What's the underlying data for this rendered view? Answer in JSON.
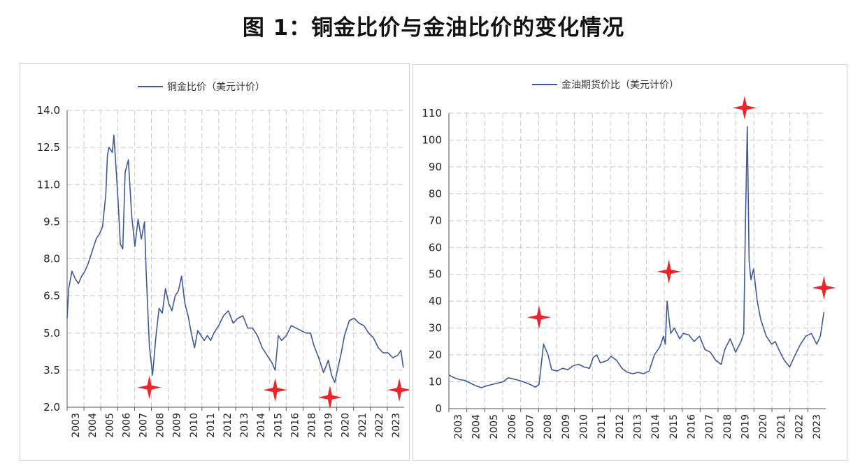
{
  "page_title": "图 1：铜金比价与金油比价的变化情况",
  "colors": {
    "series": "#3f5a98",
    "marker": "#e8262b",
    "grid": "#c8c8c8",
    "axis": "#555555"
  },
  "chart_data": [
    {
      "type": "line",
      "legend_position": "top-center",
      "grid": true,
      "ylim": [
        2.0,
        14.0
      ],
      "yticks": [
        "14.0",
        "12.5",
        "11.0",
        "9.5",
        "8.0",
        "6.5",
        "5.0",
        "3.5",
        "2.0"
      ],
      "xlim": [
        2003,
        2023.9
      ],
      "xticks": [
        "2003",
        "2004",
        "2005",
        "2006",
        "2007",
        "2008",
        "2009",
        "2010",
        "2011",
        "2012",
        "2013",
        "2014",
        "2015",
        "2016",
        "2018",
        "2019",
        "2020",
        "2021",
        "2022",
        "2023"
      ],
      "series": [
        {
          "name": "铜金比价（美元计价）",
          "x": [
            2003.0,
            2003.1,
            2003.3,
            2003.5,
            2003.7,
            2003.9,
            2004.1,
            2004.3,
            2004.5,
            2004.8,
            2005.0,
            2005.2,
            2005.4,
            2005.5,
            2005.6,
            2005.8,
            2005.9,
            2006.0,
            2006.15,
            2006.3,
            2006.45,
            2006.6,
            2006.8,
            2007.0,
            2007.2,
            2007.4,
            2007.6,
            2007.8,
            2007.9,
            2008.1,
            2008.3,
            2008.5,
            2008.7,
            2008.9,
            2009.1,
            2009.3,
            2009.5,
            2009.7,
            2009.9,
            2010.1,
            2010.3,
            2010.5,
            2010.7,
            2010.9,
            2011.1,
            2011.3,
            2011.5,
            2011.7,
            2011.9,
            2012.1,
            2012.4,
            2012.7,
            2013.0,
            2013.3,
            2013.6,
            2013.9,
            2014.2,
            2014.5,
            2014.8,
            2015.1,
            2015.4,
            2015.7,
            2015.9,
            2016.1,
            2016.3,
            2016.6,
            2016.9,
            2017.2,
            2017.5,
            2017.8,
            2018.1,
            2018.3,
            2018.6,
            2018.9,
            2019.2,
            2019.4,
            2019.6,
            2019.8,
            2020.0,
            2020.2,
            2020.5,
            2020.8,
            2021.1,
            2021.4,
            2021.7,
            2022.0,
            2022.3,
            2022.6,
            2022.9,
            2023.2,
            2023.5,
            2023.7,
            2023.85
          ],
          "values": [
            5.6,
            6.8,
            7.5,
            7.2,
            7.0,
            7.3,
            7.5,
            7.8,
            8.2,
            8.8,
            9.0,
            9.3,
            10.6,
            12.2,
            12.5,
            12.3,
            13.0,
            12.0,
            10.5,
            8.6,
            8.4,
            11.5,
            12.0,
            9.8,
            8.5,
            9.6,
            8.8,
            9.5,
            7.5,
            4.5,
            3.3,
            4.8,
            6.0,
            5.8,
            6.8,
            6.2,
            5.9,
            6.5,
            6.7,
            7.3,
            6.2,
            5.7,
            5.0,
            4.4,
            5.1,
            4.9,
            4.7,
            4.9,
            4.7,
            5.0,
            5.3,
            5.7,
            5.9,
            5.4,
            5.6,
            5.7,
            5.2,
            5.2,
            4.9,
            4.4,
            4.1,
            3.8,
            3.5,
            4.9,
            4.7,
            4.9,
            5.3,
            5.2,
            5.1,
            5.0,
            5.0,
            4.5,
            4.0,
            3.4,
            3.9,
            3.3,
            3.0,
            3.6,
            4.2,
            4.9,
            5.5,
            5.6,
            5.4,
            5.3,
            5.0,
            4.8,
            4.4,
            4.2,
            4.2,
            4.0,
            4.1,
            4.3,
            3.6
          ]
        }
      ],
      "markers": [
        {
          "x": 2008.1,
          "y": 2.8
        },
        {
          "x": 2015.9,
          "y": 2.7
        },
        {
          "x": 2019.3,
          "y": 2.4
        },
        {
          "x": 2023.6,
          "y": 2.7
        }
      ]
    },
    {
      "type": "line",
      "legend_position": "top-center",
      "grid": true,
      "ylim": [
        0,
        110
      ],
      "yticks": [
        "110",
        "100",
        "90",
        "80",
        "70",
        "60",
        "50",
        "40",
        "30",
        "20",
        "10",
        "0"
      ],
      "xlim": [
        2003,
        2023.9
      ],
      "xticks": [
        "2003",
        "2004",
        "2005",
        "2006",
        "2007",
        "2008",
        "2009",
        "2010",
        "2011",
        "2012",
        "2013",
        "2014",
        "2015",
        "2016",
        "2017",
        "2018",
        "2019",
        "2020",
        "2021",
        "2022",
        "2023"
      ],
      "series": [
        {
          "name": "金油期货价比（美元计价）",
          "x": [
            2003.0,
            2003.3,
            2003.6,
            2003.9,
            2004.2,
            2004.5,
            2004.8,
            2005.1,
            2005.4,
            2005.7,
            2006.0,
            2006.3,
            2006.6,
            2006.9,
            2007.2,
            2007.5,
            2007.8,
            2008.0,
            2008.1,
            2008.25,
            2008.5,
            2008.7,
            2009.0,
            2009.3,
            2009.6,
            2009.9,
            2010.2,
            2010.5,
            2010.8,
            2011.0,
            2011.2,
            2011.4,
            2011.6,
            2011.8,
            2012.0,
            2012.3,
            2012.6,
            2012.9,
            2013.2,
            2013.5,
            2013.8,
            2014.1,
            2014.4,
            2014.7,
            2014.9,
            2015.0,
            2015.1,
            2015.3,
            2015.5,
            2015.8,
            2016.0,
            2016.3,
            2016.6,
            2016.9,
            2017.2,
            2017.5,
            2017.8,
            2018.1,
            2018.3,
            2018.6,
            2018.9,
            2019.2,
            2019.35,
            2019.45,
            2019.55,
            2019.65,
            2019.75,
            2019.9,
            2020.1,
            2020.3,
            2020.6,
            2020.9,
            2021.1,
            2021.3,
            2021.6,
            2021.9,
            2022.2,
            2022.5,
            2022.8,
            2023.1,
            2023.4,
            2023.6,
            2023.8
          ],
          "values": [
            12.5,
            11.5,
            10.8,
            10.5,
            9.5,
            8.5,
            7.8,
            8.5,
            9.0,
            9.5,
            10.0,
            11.5,
            11.0,
            10.5,
            9.8,
            9.0,
            8.0,
            9.0,
            15.0,
            24.0,
            20.0,
            14.5,
            14.0,
            15.0,
            14.5,
            16.0,
            16.5,
            15.5,
            15.0,
            19.0,
            20.0,
            17.0,
            17.5,
            18.0,
            19.5,
            18.0,
            15.0,
            13.5,
            13.0,
            13.5,
            13.0,
            14.0,
            20.0,
            23.0,
            27.0,
            24.0,
            40.0,
            28.0,
            30.0,
            26.0,
            28.0,
            27.5,
            25.0,
            27.0,
            22.0,
            21.0,
            18.0,
            16.5,
            22.0,
            26.0,
            21.0,
            25.0,
            28.0,
            70.0,
            105.0,
            55.0,
            48.0,
            52.0,
            40.0,
            33.0,
            27.0,
            24.0,
            25.0,
            22.0,
            18.0,
            15.5,
            20.0,
            24.0,
            27.0,
            28.0,
            24.0,
            27.0,
            36.0
          ]
        }
      ],
      "markers": [
        {
          "x": 2008.0,
          "y": 34.0
        },
        {
          "x": 2015.2,
          "y": 51.0
        },
        {
          "x": 2019.4,
          "y": 112.0
        },
        {
          "x": 2023.8,
          "y": 45.0
        }
      ]
    }
  ]
}
